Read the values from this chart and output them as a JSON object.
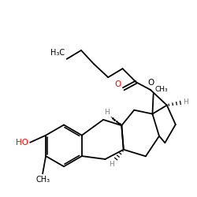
{
  "bg_color": "#ffffff",
  "bond_color": "#000000",
  "red_color": "#ff0000",
  "gray_color": "#808080",
  "figsize": [
    2.5,
    2.5
  ],
  "dpi": 100,
  "lw": 1.3,
  "xlim": [
    0,
    10
  ],
  "ylim": [
    0,
    10
  ]
}
